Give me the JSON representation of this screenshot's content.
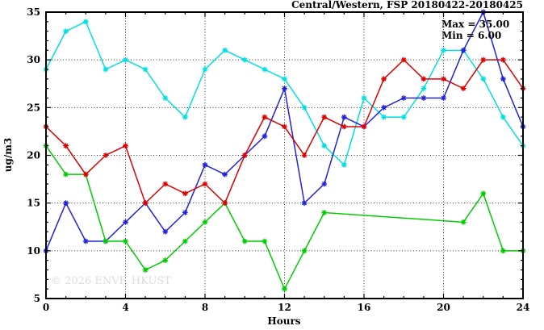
{
  "watermark": "© 2026 ENVF, HKUST",
  "chart_data": {
    "type": "line",
    "title": "Central/Western, FSP 20180422-20180425",
    "xlabel": "Hours",
    "ylabel": "ug/m3",
    "annotations": [
      "Max = 35.00",
      "Min =  6.00"
    ],
    "xlim": [
      0,
      24
    ],
    "ylim": [
      5,
      35
    ],
    "x_major_ticks": [
      0,
      4,
      8,
      12,
      16,
      20,
      24
    ],
    "y_major_ticks": [
      5,
      10,
      15,
      20,
      25,
      30,
      35
    ],
    "grid": true,
    "legend": "none",
    "x": [
      0,
      1,
      2,
      3,
      4,
      5,
      6,
      7,
      8,
      9,
      10,
      11,
      12,
      13,
      14,
      15,
      16,
      17,
      18,
      19,
      20,
      21,
      22,
      23,
      24
    ],
    "series": [
      {
        "name": "cyan-series",
        "color": "#00e0e0",
        "values": [
          29,
          33,
          34,
          29,
          30,
          29,
          26,
          24,
          29,
          31,
          30,
          29,
          28,
          25,
          21,
          19,
          26,
          24,
          24,
          27,
          31,
          31,
          28,
          24,
          21
        ]
      },
      {
        "name": "blue-series",
        "color": "#2222dd",
        "values": [
          10,
          15,
          11,
          11,
          13,
          15,
          12,
          14,
          19,
          18,
          20,
          22,
          27,
          15,
          17,
          24,
          23,
          25,
          26,
          26,
          26,
          31,
          35,
          28,
          23
        ]
      },
      {
        "name": "green-series",
        "color": "#00cc00",
        "values": [
          21,
          18,
          18,
          11,
          11,
          8,
          9,
          11,
          13,
          15,
          11,
          11,
          6,
          10,
          14,
          null,
          null,
          null,
          null,
          null,
          null,
          13,
          16,
          10,
          10
        ]
      },
      {
        "name": "red-series",
        "color": "#dd0000",
        "values": [
          23,
          21,
          18,
          20,
          21,
          15,
          17,
          16,
          17,
          15,
          20,
          24,
          23,
          20,
          24,
          23,
          23,
          28,
          30,
          28,
          28,
          27,
          30,
          30,
          27
        ]
      }
    ]
  }
}
